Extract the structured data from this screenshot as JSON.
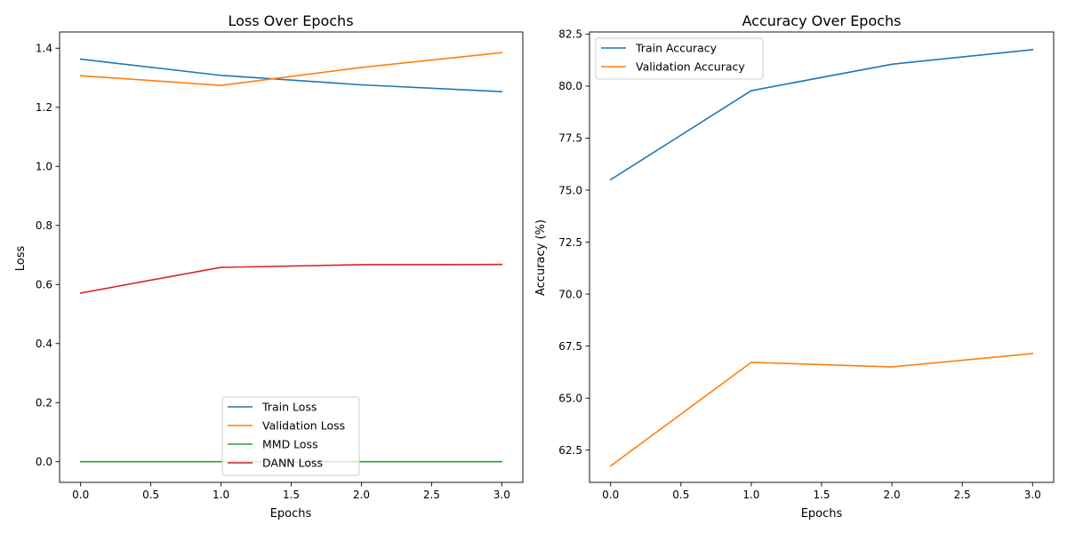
{
  "chart_data": [
    {
      "type": "line",
      "title": "Loss Over Epochs",
      "xlabel": "Epochs",
      "ylabel": "Loss",
      "xlim": [
        -0.15,
        3.15
      ],
      "ylim": [
        -0.07,
        1.455
      ],
      "xticks": [
        "0.0",
        "0.5",
        "1.0",
        "1.5",
        "2.0",
        "2.5",
        "3.0"
      ],
      "yticks": [
        "0.0",
        "0.2",
        "0.4",
        "0.6",
        "0.8",
        "1.0",
        "1.2",
        "1.4"
      ],
      "legend_position": "lower center",
      "grid": false,
      "x": [
        0,
        1,
        2,
        3
      ],
      "series": [
        {
          "name": "Train Loss",
          "color": "#1f77b4",
          "values": [
            1.363,
            1.308,
            1.276,
            1.253
          ]
        },
        {
          "name": "Validation Loss",
          "color": "#ff7f0e",
          "values": [
            1.307,
            1.274,
            1.335,
            1.385
          ]
        },
        {
          "name": "MMD Loss",
          "color": "#2ca02c",
          "values": [
            0.0,
            0.0,
            0.0,
            0.0
          ]
        },
        {
          "name": "DANN Loss",
          "color": "#d62728",
          "values": [
            0.571,
            0.658,
            0.667,
            0.668
          ]
        }
      ]
    },
    {
      "type": "line",
      "title": "Accuracy Over Epochs",
      "xlabel": "Epochs",
      "ylabel": "Accuracy (%)",
      "xlim": [
        -0.15,
        3.15
      ],
      "ylim": [
        60.95,
        82.6
      ],
      "xticks": [
        "0.0",
        "0.5",
        "1.0",
        "1.5",
        "2.0",
        "2.5",
        "3.0"
      ],
      "yticks": [
        "62.5",
        "65.0",
        "67.5",
        "70.0",
        "72.5",
        "75.0",
        "77.5",
        "80.0",
        "82.5"
      ],
      "legend_position": "upper left",
      "grid": false,
      "x": [
        0,
        1,
        2,
        3
      ],
      "series": [
        {
          "name": "Train Accuracy",
          "color": "#1f77b4",
          "values": [
            75.5,
            79.78,
            81.05,
            81.75
          ]
        },
        {
          "name": "Validation Accuracy",
          "color": "#ff7f0e",
          "values": [
            61.74,
            66.72,
            66.5,
            67.14
          ]
        }
      ]
    }
  ]
}
